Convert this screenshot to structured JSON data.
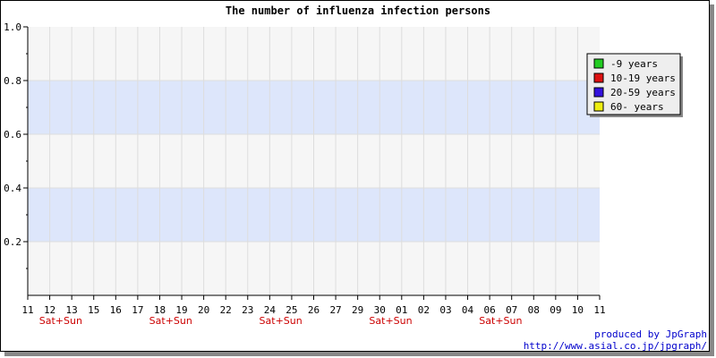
{
  "chart_data": {
    "type": "line",
    "title": "The number of influenza infection persons",
    "xlabel": "",
    "ylabel": "",
    "ylim": [
      0,
      1.0
    ],
    "y_ticks": [
      "0.2",
      "0.4",
      "0.6",
      "0.8",
      "1.0"
    ],
    "x_categories": [
      "11",
      "12",
      "13",
      "15",
      "16",
      "17",
      "18",
      "19",
      "20",
      "22",
      "23",
      "24",
      "25",
      "26",
      "27",
      "29",
      "30",
      "01",
      "02",
      "03",
      "04",
      "06",
      "07",
      "08",
      "09",
      "10",
      "11"
    ],
    "weekend_label": "Sat+Sun",
    "weekend_after_index": [
      1,
      6,
      11,
      16,
      21
    ],
    "grid": true,
    "legend_position": "top-right",
    "series": [
      {
        "name": "-9 years",
        "color": "#22cc22",
        "values": []
      },
      {
        "name": "10-19 years",
        "color": "#dd1111",
        "values": []
      },
      {
        "name": "20-59 years",
        "color": "#3311dd",
        "values": []
      },
      {
        "name": "60- years",
        "color": "#eeee11",
        "values": []
      }
    ]
  },
  "credit": {
    "line1": "produced by JpGraph",
    "line2": "http://www.asial.co.jp/jpgraph/"
  }
}
